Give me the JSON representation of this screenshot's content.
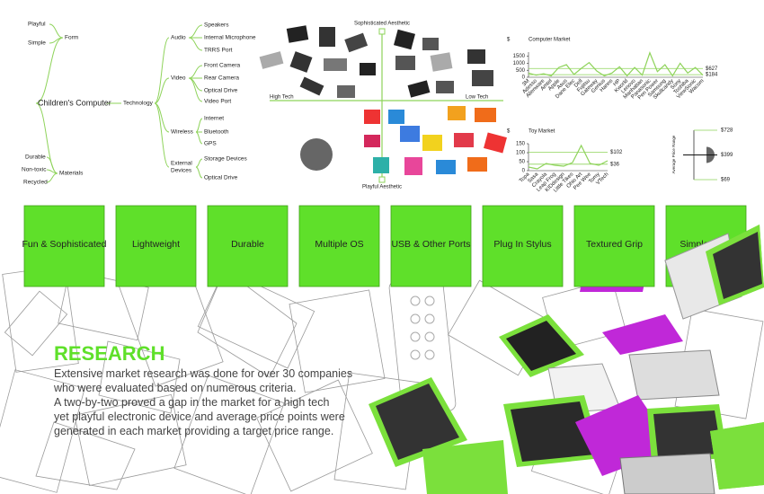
{
  "mindmap": {
    "root": "Children's Computer",
    "form": {
      "label": "Form",
      "children": [
        "Playful",
        "Simple"
      ]
    },
    "technology": {
      "label": "Technology",
      "groups": [
        {
          "label": "Audio",
          "items": [
            "Speakers",
            "Internal Microphone",
            "TRRS Port"
          ]
        },
        {
          "label": "Video",
          "items": [
            "Front Camera",
            "Rear Camera",
            "Optical Drive",
            "Video Port"
          ]
        },
        {
          "label": "Wireless",
          "items": [
            "Internet",
            "Bluetooth",
            "GPS"
          ]
        },
        {
          "label": [
            "External",
            "Devices"
          ],
          "items": [
            "Storage Devices",
            "Optical Drive"
          ]
        }
      ]
    },
    "materials": {
      "label": "Materials",
      "children": [
        "Durable",
        "Non-toxic",
        "Recycled"
      ]
    }
  },
  "two_by_two": {
    "top": "Sophisticated Aesthetic",
    "bottom": "Playful Aesthetic",
    "left": "High Tech",
    "right": "Low Tech"
  },
  "computer_market": {
    "type": "line",
    "title": "Computer Market",
    "ylabel": "$",
    "categories": [
      "3M",
      "Adesso",
      "Alienware",
      "Amtel",
      "Apple",
      "Asus",
      "Dane Elec",
      "Dell",
      "Fujitsu",
      "Gateway",
      "Genius",
      "Hanns",
      "HP",
      "Kworld",
      "Lenovo",
      "Manhattan",
      "Panasonic",
      "Pen Power",
      "Samsung",
      "Skullcandy",
      "Sony",
      "Toshiba",
      "ViewSonic",
      "Wacom"
    ],
    "values": [
      300,
      150,
      250,
      100,
      700,
      900,
      200,
      650,
      1050,
      450,
      100,
      300,
      750,
      100,
      700,
      150,
      1750,
      400,
      900,
      100,
      1000,
      300,
      700,
      150
    ],
    "color": "#8ed35a",
    "ylim": [
      0,
      1800
    ],
    "yticks": [
      0,
      500,
      1000,
      1500
    ],
    "reference_lines": [
      {
        "value": 184,
        "label": "$184"
      },
      {
        "value": 627,
        "label": "$627"
      }
    ]
  },
  "toy_market": {
    "type": "line",
    "title": "Toy Market",
    "ylabel": "$",
    "categories": [
      "Topa",
      "Sasa",
      "Crayola",
      "Leap Frog",
      "KIDdesign",
      "Little Tikes",
      "Ohio Art",
      "Pee Wee",
      "Tomy",
      "VTech"
    ],
    "values": [
      20,
      10,
      40,
      30,
      25,
      45,
      140,
      40,
      30,
      55
    ],
    "color": "#8ed35a",
    "ylim": [
      0,
      150
    ],
    "yticks": [
      0,
      50,
      100,
      150
    ],
    "reference_lines": [
      {
        "value": 102,
        "label": "$102"
      },
      {
        "value": 36,
        "label": "$36"
      }
    ]
  },
  "price_range": {
    "ylabel": "Average Price Range",
    "ylim": [
      69,
      728
    ],
    "high": {
      "value": 728,
      "label": "$728"
    },
    "target": {
      "value": 399,
      "label": "$399"
    },
    "low": {
      "value": 69,
      "label": "$69"
    }
  },
  "features": [
    "Fun & Sophisticated",
    "Lightweight",
    "Durable",
    "Multiple OS",
    "USB & Other Ports",
    "Plug In Stylus",
    "Textured Grip",
    "Simple Style"
  ],
  "research": {
    "heading": "RESEARCH",
    "lines": [
      "Extensive market research was done for over 30 companies",
      "who were evaluated based on numerous criteria.",
      "A two-by-two proved a gap in the market for a high tech",
      "yet playful electronic device and average price points were",
      "generated in each market providing a target price range."
    ]
  }
}
